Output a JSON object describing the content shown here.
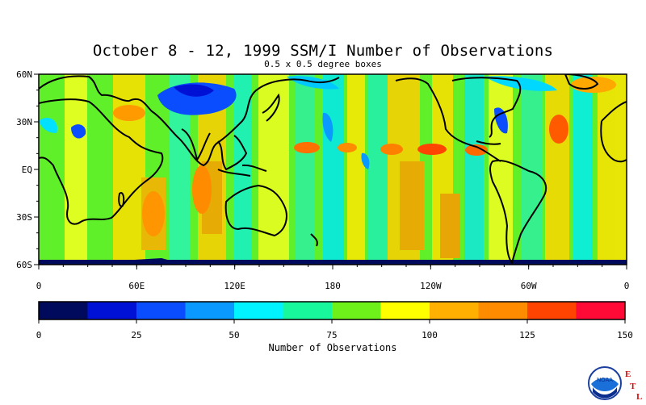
{
  "title": "October 8 - 12, 1999 SSM/I Number of Observations",
  "subtitle": "0.5 x 0.5 degree boxes",
  "map": {
    "lon_labels": [
      "0",
      "60E",
      "120E",
      "180",
      "120W",
      "60W",
      "0"
    ],
    "lat_labels": [
      "60N",
      "30N",
      "EQ",
      "30S",
      "60S"
    ],
    "lon_range": [
      0,
      360
    ],
    "lat_range": [
      -60,
      60
    ]
  },
  "colorbar": {
    "title": "Number of Observations",
    "tick_labels": [
      "0",
      "25",
      "50",
      "75",
      "100",
      "125",
      "150"
    ],
    "range": [
      0,
      150
    ],
    "colors": [
      "#000a5c",
      "#0011d6",
      "#0a4dff",
      "#0a9aff",
      "#00f3ff",
      "#18f79c",
      "#6ef11b",
      "#ffff00",
      "#ffb000",
      "#ff8b00",
      "#ff4300",
      "#ff0a37"
    ]
  },
  "logo": {
    "text": "NOAA",
    "letters": [
      "E",
      "T",
      "L"
    ],
    "icon": "noaa-logo-icon"
  }
}
